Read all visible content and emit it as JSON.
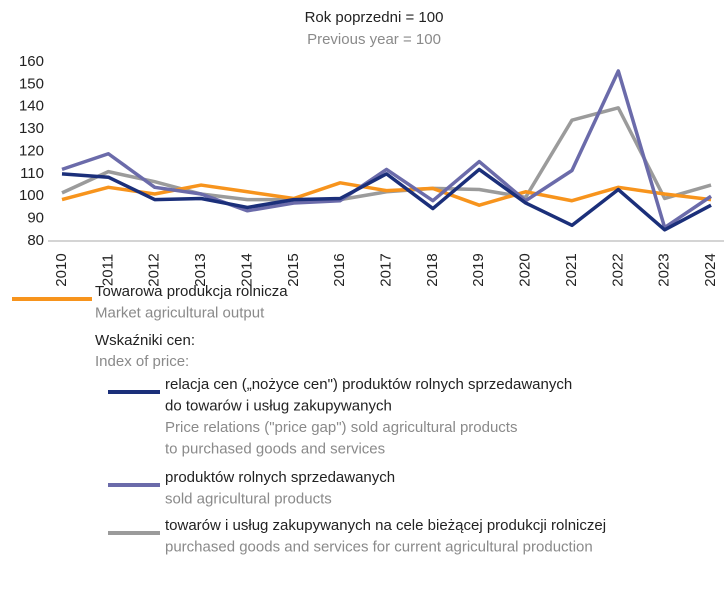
{
  "chart_data": {
    "type": "line",
    "title": "Rok poprzedni = 100",
    "subtitle": "Previous year = 100",
    "categories": [
      "2010",
      "2011",
      "2012",
      "2013",
      "2014",
      "2015",
      "2016",
      "2017",
      "2018",
      "2019",
      "2020",
      "2021",
      "2022",
      "2023",
      "2024"
    ],
    "ylim": [
      80,
      160
    ],
    "yticks": [
      80,
      90,
      100,
      110,
      120,
      130,
      140,
      150,
      160
    ],
    "grid": false,
    "legend_group": {
      "name": "Wskaźniki cen:",
      "name_en": "Index of price:"
    },
    "series": [
      {
        "name": "Towarowa produkcja rolnicza",
        "name_en": "Market agricultural output",
        "color": "#f7941d",
        "values": [
          98.5,
          104,
          101,
          105,
          102,
          99,
          106,
          102.5,
          103.5,
          96,
          102,
          98,
          104,
          101,
          98.5
        ]
      },
      {
        "name": "relacja cen („nożyce cen\") produktów rolnych sprzedawanych\ndo towarów i usług zakupywanych",
        "name_en": "Price relations (\"price gap\") sold agricultural products\nto purchased goods and services",
        "color": "#1b2f7a",
        "values": [
          110,
          108.5,
          98.5,
          99,
          95,
          98.5,
          99,
          110,
          94.5,
          112,
          97,
          87,
          103,
          85,
          96
        ]
      },
      {
        "name": "produktów rolnych sprzedawanych",
        "name_en": "sold agricultural products",
        "color": "#6b6baa",
        "values": [
          112,
          119,
          104,
          101,
          93.5,
          97,
          98,
          112,
          98,
          115.5,
          98,
          111.5,
          156,
          86,
          100
        ]
      },
      {
        "name": "towarów i usług zakupywanych na cele bieżącej produkcji rolniczej",
        "name_en": "purchased goods and services for current agricultural production",
        "color": "#9b9b9b",
        "values": [
          101.5,
          111,
          106.5,
          101,
          98.5,
          98.5,
          98.5,
          102,
          103.5,
          103,
          99.5,
          134,
          139.5,
          99,
          105
        ]
      }
    ]
  }
}
